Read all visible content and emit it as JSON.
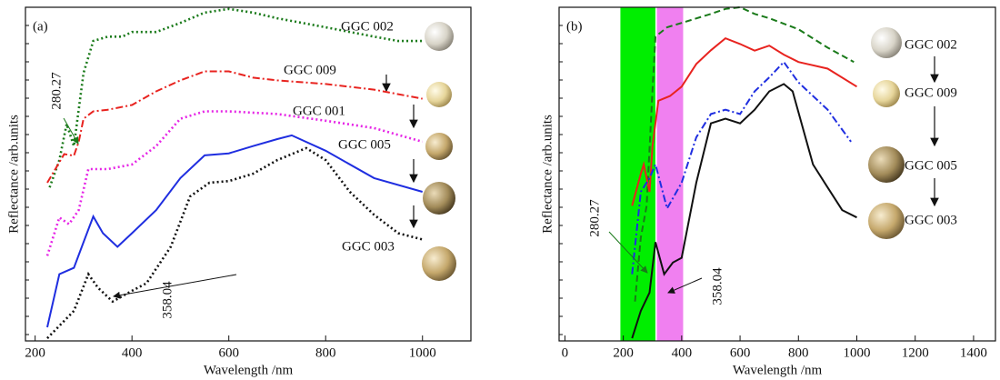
{
  "chart_data": [
    {
      "type": "line",
      "panel_label": "(a)",
      "xlabel": "Wavelength /nm",
      "ylabel": "Reflectance /arb.units",
      "xlim": [
        180,
        1100
      ],
      "xticks": [
        200,
        400,
        600,
        800,
        1000
      ],
      "ylim": [
        0,
        100
      ],
      "annotations": [
        "280.27",
        "358.04"
      ],
      "series": [
        {
          "name": "GGC 002",
          "color": "#1a7a1a",
          "linestyle": "dotted",
          "x": [
            230,
            250,
            265,
            280,
            300,
            320,
            350,
            380,
            400,
            450,
            500,
            550,
            600,
            650,
            700,
            800,
            900,
            950,
            1000
          ],
          "values": [
            46,
            54.2,
            65,
            58.4,
            80.3,
            89.9,
            91.2,
            91.2,
            92.6,
            92.6,
            95.3,
            98.4,
            99.5,
            98.4,
            96.7,
            94,
            91.2,
            89.9,
            89.9
          ]
        },
        {
          "name": "GGC 009",
          "color": "#e8231f",
          "linestyle": "dashdot",
          "x": [
            225,
            260,
            280,
            290,
            300,
            320,
            350,
            400,
            450,
            500,
            550,
            600,
            650,
            700,
            800,
            900,
            1000
          ],
          "values": [
            47.4,
            56,
            55.5,
            59.7,
            66.6,
            68.8,
            69.3,
            70.7,
            74.8,
            78.1,
            80.8,
            80.8,
            78.9,
            78.1,
            77,
            75.3,
            72.6
          ]
        },
        {
          "name": "GGC 001",
          "color": "#e625e6",
          "linestyle": "dotted",
          "x": [
            225,
            250,
            270,
            290,
            310,
            350,
            400,
            450,
            500,
            550,
            600,
            700,
            800,
            900,
            1000
          ],
          "values": [
            25.5,
            37,
            35,
            39.2,
            51.5,
            51.5,
            52.9,
            58.4,
            66.6,
            68.8,
            68.8,
            68,
            66,
            63.8,
            59.7
          ]
        },
        {
          "name": "GGC 005",
          "color": "#1f2ee0",
          "linestyle": "solid",
          "x": [
            225,
            250,
            280,
            300,
            320,
            340,
            370,
            400,
            450,
            500,
            550,
            600,
            650,
            700,
            730,
            800,
            900,
            1000
          ],
          "values": [
            4.1,
            20,
            21.9,
            29.6,
            37.3,
            32.3,
            28.2,
            32.3,
            39.2,
            48.8,
            55.6,
            56.2,
            58.4,
            60.5,
            61.6,
            57,
            48.8,
            44.7
          ]
        },
        {
          "name": "GGC 003",
          "color": "#111111",
          "linestyle": "dotted",
          "x": [
            225,
            280,
            310,
            330,
            360,
            400,
            430,
            480,
            520,
            560,
            600,
            650,
            700,
            760,
            800,
            850,
            900,
            950,
            1000
          ],
          "values": [
            0.8,
            9,
            20,
            15.9,
            11.8,
            15,
            17.3,
            28.2,
            43.3,
            47.4,
            47.9,
            50.1,
            54.2,
            57.8,
            54.2,
            44.7,
            37.8,
            32.3,
            30.4
          ]
        }
      ]
    },
    {
      "type": "line",
      "panel_label": "(b)",
      "xlabel": "Wavelength /nm",
      "ylabel": "Reflectance /arb.units",
      "xlim": [
        -20,
        1475
      ],
      "xticks": [
        0,
        200,
        400,
        600,
        800,
        1000,
        1200,
        1400
      ],
      "ylim": [
        0,
        100
      ],
      "annotations": [
        "280.27",
        "358.04"
      ],
      "bands": [
        {
          "range": [
            190,
            310
          ],
          "color": "#00ee00"
        },
        {
          "range": [
            315,
            405
          ],
          "color": "#f080f0"
        }
      ],
      "series": [
        {
          "name": "GGC 002",
          "color": "#1a7a1a",
          "linestyle": "dashed",
          "x": [
            240,
            260,
            280,
            300,
            310,
            350,
            400,
            500,
            550,
            600,
            650,
            700,
            800,
            900,
            990
          ],
          "values": [
            11.8,
            31,
            40.5,
            74.8,
            91.2,
            94,
            95.3,
            98,
            99.5,
            100,
            98,
            96.7,
            93.4,
            87.9,
            83.6
          ]
        },
        {
          "name": "GGC 009",
          "color": "#e8231f",
          "linestyle": "solid",
          "x": [
            230,
            260,
            270,
            290,
            300,
            320,
            360,
            400,
            450,
            500,
            550,
            600,
            650,
            700,
            750,
            800,
            900,
            1000
          ],
          "values": [
            40.5,
            50.1,
            52.9,
            44.7,
            58.4,
            72,
            73.4,
            76.2,
            83,
            87.1,
            90.7,
            89,
            87,
            88.5,
            85.8,
            83.6,
            81.6,
            76.2
          ]
        },
        {
          "name": "GGC 005",
          "color": "#1f2ee0",
          "linestyle": "dashdot",
          "x": [
            230,
            260,
            290,
            310,
            350,
            400,
            450,
            500,
            550,
            600,
            650,
            700,
            750,
            800,
            900,
            980
          ],
          "values": [
            20,
            44.7,
            48.8,
            52.9,
            39.7,
            47.4,
            61,
            68,
            69.3,
            68,
            74.8,
            79,
            83.6,
            77.5,
            69.3,
            59.7
          ]
        },
        {
          "name": "GGC 003",
          "color": "#111111",
          "linestyle": "solid",
          "x": [
            230,
            260,
            290,
            310,
            340,
            370,
            400,
            450,
            500,
            550,
            600,
            650,
            700,
            750,
            780,
            850,
            900,
            950,
            1000
          ],
          "values": [
            0.8,
            9,
            14.5,
            29.6,
            20,
            23.5,
            24.9,
            47.4,
            65.2,
            66.6,
            65.2,
            69.3,
            74.8,
            77,
            74.8,
            52.9,
            46,
            39.2,
            37
          ]
        }
      ]
    }
  ]
}
